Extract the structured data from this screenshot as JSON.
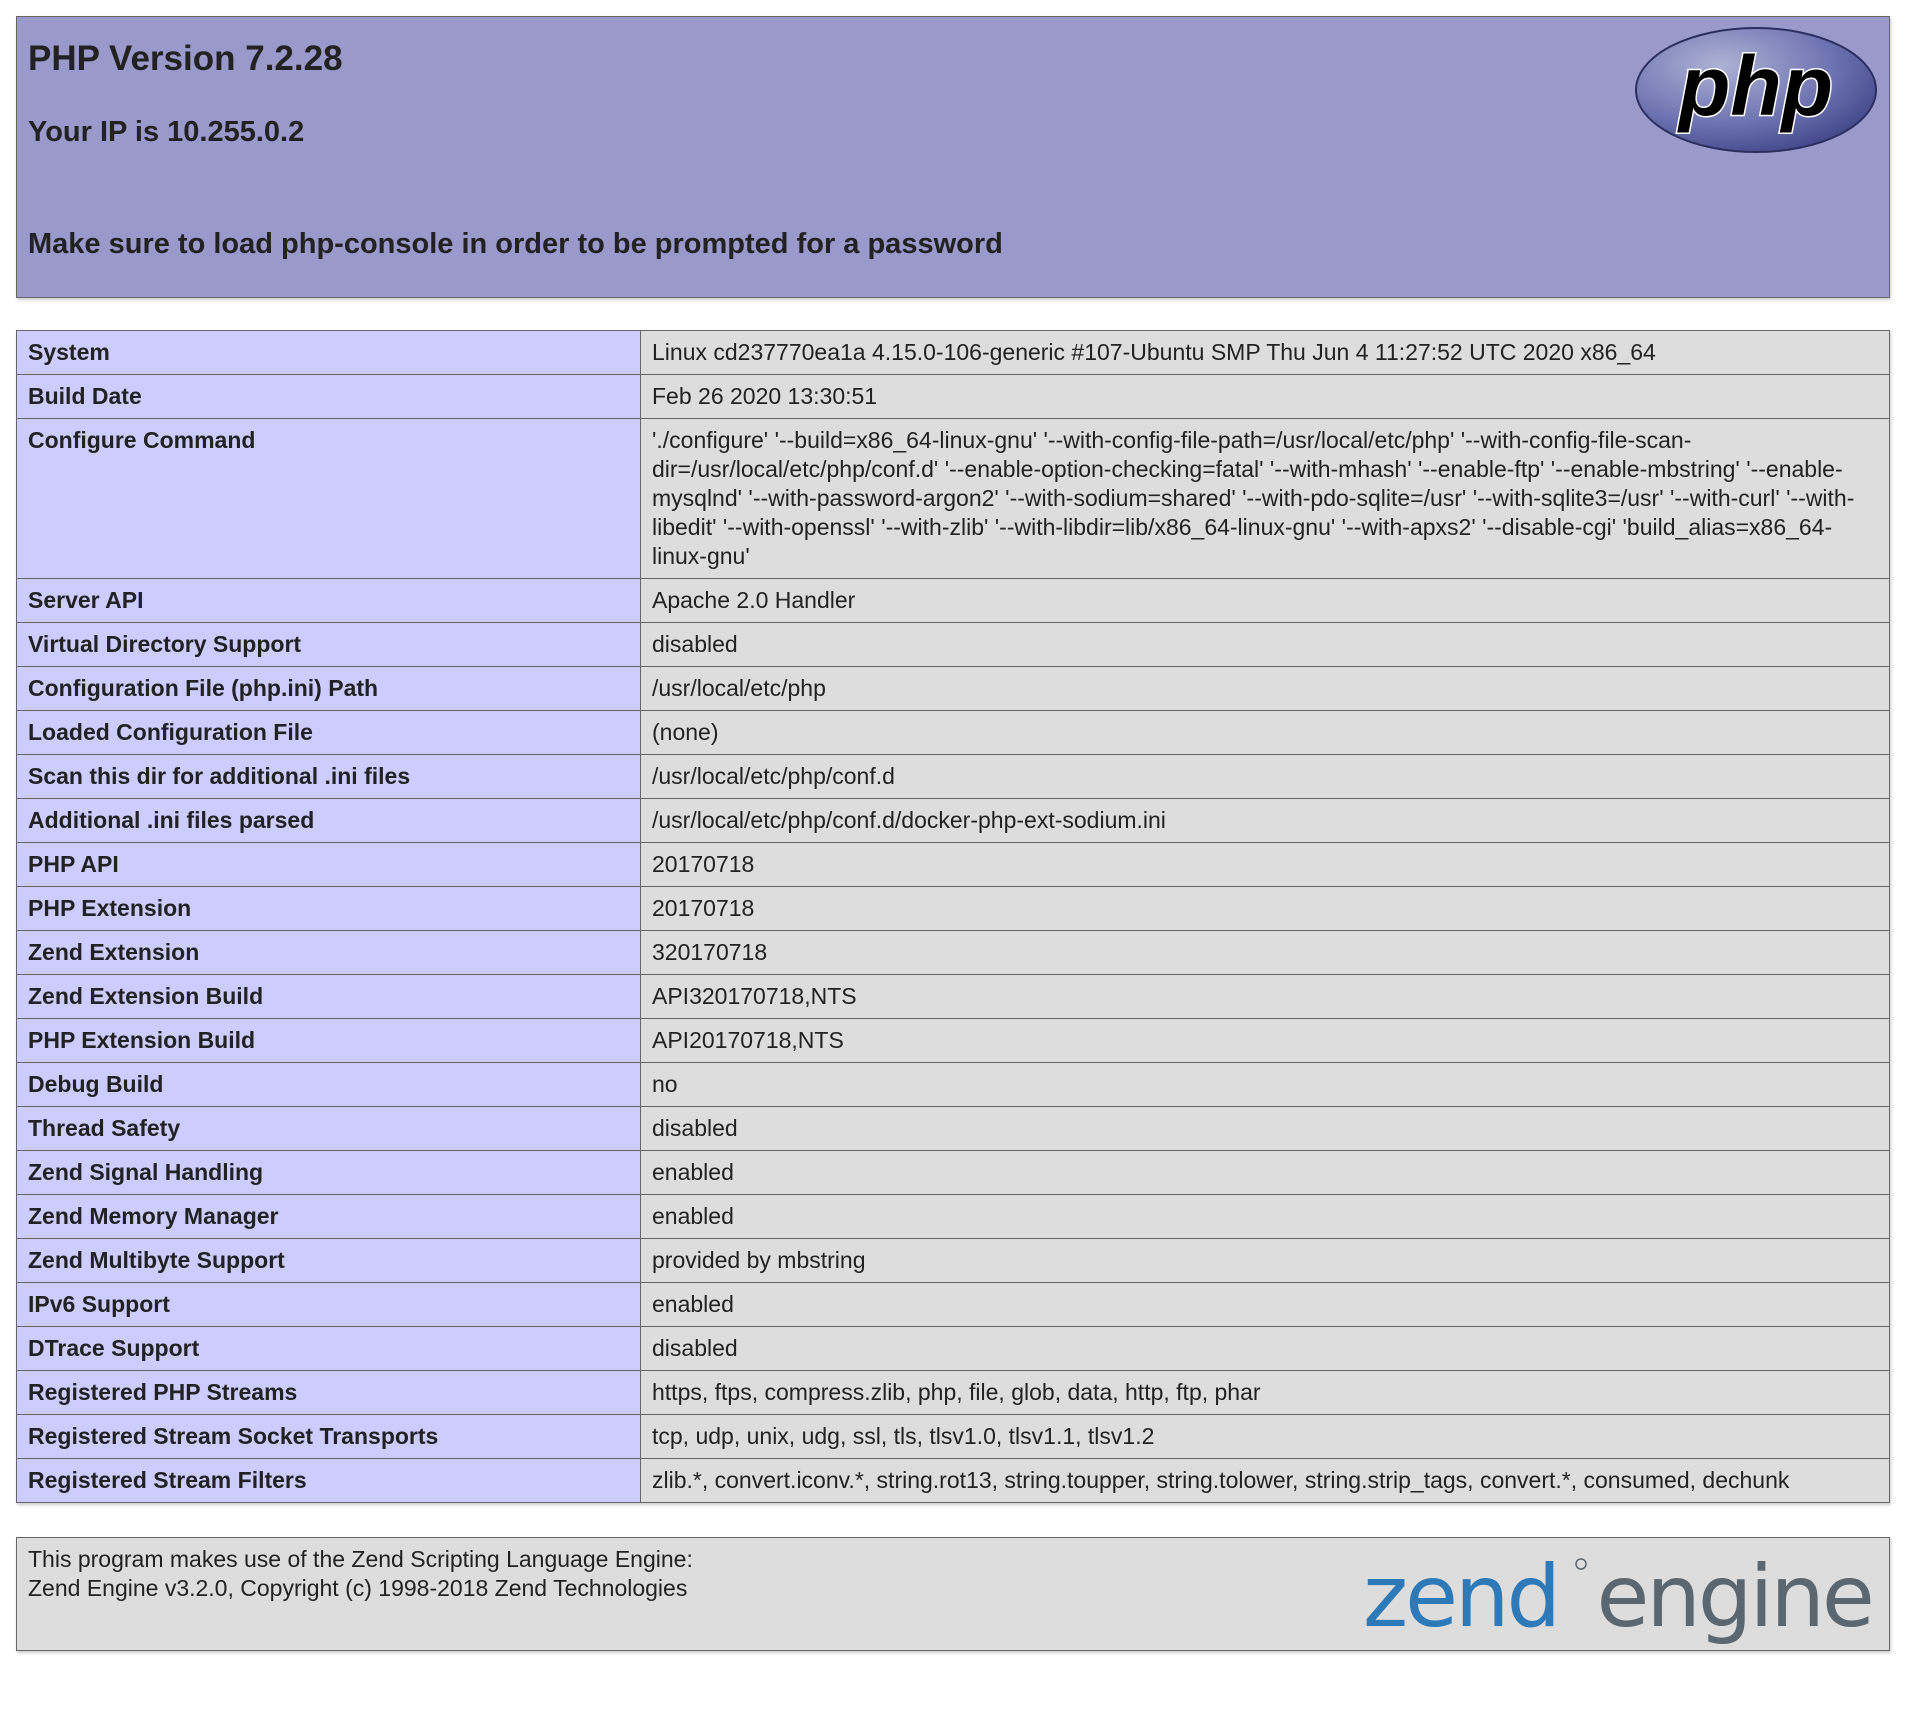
{
  "header": {
    "title": "PHP Version 7.2.28",
    "ip_line": "Your IP is 10.255.0.2",
    "notice": "Make sure to load php-console in order to be prompted for a password",
    "logo_text": "php"
  },
  "info_rows": [
    {
      "key": "System",
      "value": "Linux cd237770ea1a 4.15.0-106-generic #107-Ubuntu SMP Thu Jun 4 11:27:52 UTC 2020 x86_64"
    },
    {
      "key": "Build Date",
      "value": "Feb 26 2020 13:30:51"
    },
    {
      "key": "Configure Command",
      "value": "'./configure' '--build=x86_64-linux-gnu' '--with-config-file-path=/usr/local/etc/php' '--with-config-file-scan-dir=/usr/local/etc/php/conf.d' '--enable-option-checking=fatal' '--with-mhash' '--enable-ftp' '--enable-mbstring' '--enable-mysqlnd' '--with-password-argon2' '--with-sodium=shared' '--with-pdo-sqlite=/usr' '--with-sqlite3=/usr' '--with-curl' '--with-libedit' '--with-openssl' '--with-zlib' '--with-libdir=lib/x86_64-linux-gnu' '--with-apxs2' '--disable-cgi' 'build_alias=x86_64-linux-gnu'"
    },
    {
      "key": "Server API",
      "value": "Apache 2.0 Handler"
    },
    {
      "key": "Virtual Directory Support",
      "value": "disabled"
    },
    {
      "key": "Configuration File (php.ini) Path",
      "value": "/usr/local/etc/php"
    },
    {
      "key": "Loaded Configuration File",
      "value": "(none)"
    },
    {
      "key": "Scan this dir for additional .ini files",
      "value": "/usr/local/etc/php/conf.d"
    },
    {
      "key": "Additional .ini files parsed",
      "value": "/usr/local/etc/php/conf.d/docker-php-ext-sodium.ini"
    },
    {
      "key": "PHP API",
      "value": "20170718"
    },
    {
      "key": "PHP Extension",
      "value": "20170718"
    },
    {
      "key": "Zend Extension",
      "value": "320170718"
    },
    {
      "key": "Zend Extension Build",
      "value": "API320170718,NTS"
    },
    {
      "key": "PHP Extension Build",
      "value": "API20170718,NTS"
    },
    {
      "key": "Debug Build",
      "value": "no"
    },
    {
      "key": "Thread Safety",
      "value": "disabled"
    },
    {
      "key": "Zend Signal Handling",
      "value": "enabled"
    },
    {
      "key": "Zend Memory Manager",
      "value": "enabled"
    },
    {
      "key": "Zend Multibyte Support",
      "value": "provided by mbstring"
    },
    {
      "key": "IPv6 Support",
      "value": "enabled"
    },
    {
      "key": "DTrace Support",
      "value": "disabled"
    },
    {
      "key": "Registered PHP Streams",
      "value": "https, ftps, compress.zlib, php, file, glob, data, http, ftp, phar"
    },
    {
      "key": "Registered Stream Socket Transports",
      "value": "tcp, udp, unix, udg, ssl, tls, tlsv1.0, tlsv1.1, tlsv1.2"
    },
    {
      "key": "Registered Stream Filters",
      "value": "zlib.*, convert.iconv.*, string.rot13, string.toupper, string.tolower, string.strip_tags, convert.*, consumed, dechunk"
    }
  ],
  "footer": {
    "line1": "This program makes use of the Zend Scripting Language Engine:",
    "line2": "Zend Engine v3.2.0, Copyright (c) 1998-2018 Zend Technologies",
    "logo_text_a": "zend",
    "logo_text_b": "engine"
  },
  "colors": {
    "header_bg": "#9999cc",
    "key_bg": "#ccccff",
    "value_bg": "#dddddd",
    "zend_blue": "#2e79b8",
    "zend_gray": "#5b6770"
  }
}
